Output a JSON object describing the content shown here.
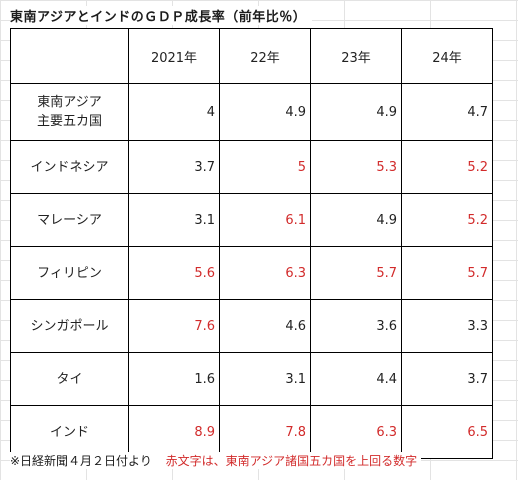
{
  "title": "東南アジアとインドのＧＤＰ成長率（前年比％）",
  "columns": [
    "",
    "2021年",
    "22年",
    "23年",
    "24年"
  ],
  "rows": [
    {
      "name_lines": [
        "東南アジア",
        "主要五カ国"
      ],
      "values": [
        "4",
        "4.9",
        "4.9",
        "4.7"
      ],
      "highlight": [
        false,
        false,
        false,
        false
      ]
    },
    {
      "name_lines": [
        "インドネシア"
      ],
      "values": [
        "3.7",
        "5",
        "5.3",
        "5.2"
      ],
      "highlight": [
        false,
        true,
        true,
        true
      ]
    },
    {
      "name_lines": [
        "マレーシア"
      ],
      "values": [
        "3.1",
        "6.1",
        "4.9",
        "5.2"
      ],
      "highlight": [
        false,
        true,
        false,
        true
      ]
    },
    {
      "name_lines": [
        "フィリピン"
      ],
      "values": [
        "5.6",
        "6.3",
        "5.7",
        "5.7"
      ],
      "highlight": [
        true,
        true,
        true,
        true
      ]
    },
    {
      "name_lines": [
        "シンガポール"
      ],
      "values": [
        "7.6",
        "4.6",
        "3.6",
        "3.3"
      ],
      "highlight": [
        true,
        false,
        false,
        false
      ]
    },
    {
      "name_lines": [
        "タイ"
      ],
      "values": [
        "1.6",
        "3.1",
        "4.4",
        "3.7"
      ],
      "highlight": [
        false,
        false,
        false,
        false
      ]
    },
    {
      "name_lines": [
        "インド"
      ],
      "values": [
        "8.9",
        "7.8",
        "6.3",
        "6.5"
      ],
      "highlight": [
        true,
        true,
        true,
        true
      ]
    }
  ],
  "footer": {
    "note": "※日経新聞４月２日付より",
    "legend": "赤文字は、東南アジア諸国五カ国を上回る数字"
  },
  "colors": {
    "highlight": "#d22b2b",
    "text": "#222222",
    "border": "#000000"
  }
}
